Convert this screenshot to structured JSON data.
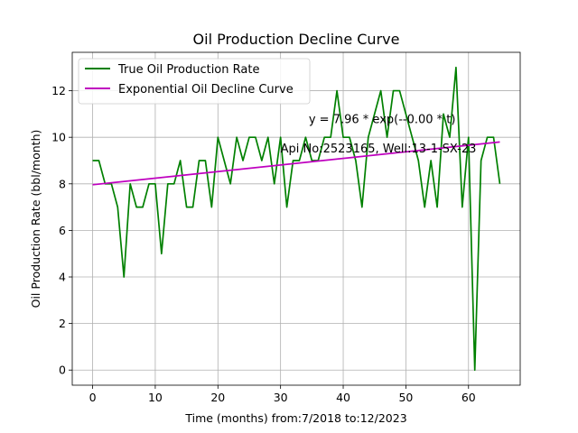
{
  "chart_data": {
    "type": "line",
    "title": "Oil Production Decline Curve",
    "xlabel": "Time (months) from:7/2018 to:12/2023",
    "ylabel": "Oil Production Rate (bbl/month)",
    "xlim": [
      -3.25,
      68.25
    ],
    "ylim": [
      -0.65,
      13.65
    ],
    "xticks": [
      0,
      10,
      20,
      30,
      40,
      50,
      60
    ],
    "yticks": [
      0,
      2,
      4,
      6,
      8,
      10,
      12
    ],
    "grid": true,
    "legend_position": "top-left",
    "series": [
      {
        "name": "True Oil Production Rate",
        "color": "#008000",
        "x": [
          0,
          1,
          2,
          3,
          4,
          5,
          6,
          7,
          8,
          9,
          10,
          11,
          12,
          13,
          14,
          15,
          16,
          17,
          18,
          19,
          20,
          21,
          22,
          23,
          24,
          25,
          26,
          27,
          28,
          29,
          30,
          31,
          32,
          33,
          34,
          35,
          36,
          37,
          38,
          39,
          40,
          41,
          42,
          43,
          44,
          45,
          46,
          47,
          48,
          49,
          50,
          51,
          52,
          53,
          54,
          55,
          56,
          57,
          58,
          59,
          60,
          61,
          62,
          63,
          64,
          65
        ],
        "y": [
          9,
          9,
          8,
          8,
          7,
          4,
          8,
          7,
          7,
          8,
          8,
          5,
          8,
          8,
          9,
          7,
          7,
          9,
          9,
          7,
          10,
          9,
          8,
          10,
          9,
          10,
          10,
          9,
          10,
          8,
          10,
          7,
          9,
          9,
          10,
          9,
          9,
          10,
          10,
          12,
          10,
          10,
          9,
          7,
          10,
          11,
          12,
          10,
          12,
          12,
          11,
          10,
          9,
          7,
          9,
          7,
          11,
          10,
          13,
          7,
          10,
          0,
          9,
          10,
          10,
          8
        ]
      },
      {
        "name": "Exponential Oil Decline Curve",
        "color": "#bf00bf",
        "x": [
          0,
          65
        ],
        "y": [
          7.96,
          9.8
        ]
      }
    ],
    "annotations": [
      {
        "text": "y = 7.96 * exp(--0.00 * t)",
        "x": 34.5,
        "y": 10.6
      },
      {
        "text": "Api No:2523165, Well:13-1-SX-23",
        "x": 30,
        "y": 9.35
      }
    ]
  }
}
